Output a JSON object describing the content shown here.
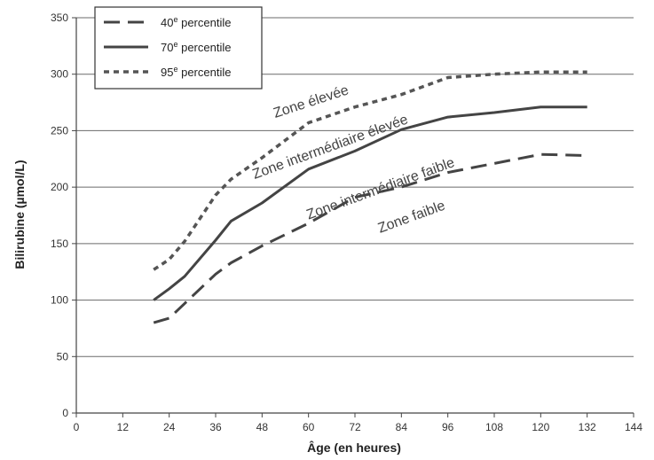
{
  "chart_data": {
    "type": "line",
    "xlabel": "Âge (en heures)",
    "ylabel": "Bilirubine (µmol/L)",
    "xlim": [
      0,
      144
    ],
    "ylim": [
      0,
      350
    ],
    "xticks": [
      0,
      12,
      24,
      36,
      48,
      60,
      72,
      84,
      96,
      108,
      120,
      132,
      144
    ],
    "yticks": [
      0,
      50,
      100,
      150,
      200,
      250,
      300,
      350
    ],
    "grid": "horizontal",
    "legend_position": "top-left",
    "series": [
      {
        "name": "40e percentile",
        "label_main": "40",
        "label_sup": "e",
        "label_rest": " percentile",
        "style": "long-dash",
        "color": "#444444",
        "x": [
          20,
          24,
          28,
          36,
          40,
          48,
          60,
          72,
          84,
          96,
          108,
          120,
          132
        ],
        "y": [
          80,
          84,
          97,
          123,
          133,
          148,
          168,
          191,
          200,
          213,
          221,
          229,
          228
        ]
      },
      {
        "name": "70e percentile",
        "label_main": "70",
        "label_sup": "e",
        "label_rest": " percentile",
        "style": "solid",
        "color": "#444444",
        "x": [
          20,
          24,
          28,
          36,
          40,
          48,
          60,
          72,
          84,
          96,
          108,
          120,
          132
        ],
        "y": [
          100,
          110,
          121,
          153,
          170,
          186,
          216,
          232,
          251,
          262,
          266,
          271,
          271
        ]
      },
      {
        "name": "95e percentile",
        "label_main": "95",
        "label_sup": "e",
        "label_rest": " percentile",
        "style": "dotted",
        "color": "#555555",
        "x": [
          20,
          24,
          28,
          36,
          40,
          48,
          60,
          72,
          84,
          96,
          108,
          120,
          132
        ],
        "y": [
          127,
          136,
          152,
          193,
          207,
          226,
          257,
          271,
          282,
          297,
          300,
          302,
          302
        ]
      }
    ],
    "annotations": [
      {
        "text": "Zone élevée",
        "x": 61,
        "y": 272,
        "angle": -18
      },
      {
        "text": "Zone intermédiaire élevée",
        "x": 66,
        "y": 232,
        "angle": -20
      },
      {
        "text": "Zone intermédiaire faible",
        "x": 79,
        "y": 195,
        "angle": -20
      },
      {
        "text": "Zone faible",
        "x": 87,
        "y": 170,
        "angle": -20
      }
    ]
  }
}
